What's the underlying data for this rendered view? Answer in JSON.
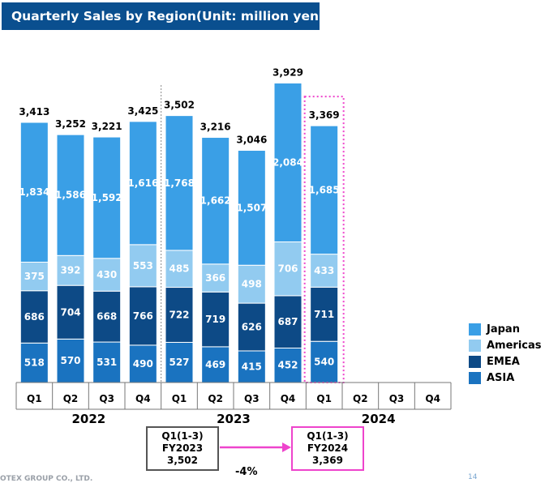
{
  "title": "Quarterly Sales by Region(Unit: million yen)",
  "chart_data": {
    "type": "bar",
    "stacked": true,
    "title": "Quarterly Sales by Region(Unit: million yen)",
    "xlabel": "",
    "ylabel": "",
    "categories": [
      "Q1",
      "Q2",
      "Q3",
      "Q4",
      "Q1",
      "Q2",
      "Q3",
      "Q4",
      "Q1",
      "Q2",
      "Q3",
      "Q4"
    ],
    "years": [
      {
        "label": "2022",
        "quarters": 4
      },
      {
        "label": "2023",
        "quarters": 4
      },
      {
        "label": "2024",
        "quarters": 4
      }
    ],
    "series": [
      {
        "name": "ASIA",
        "color": "#1a73c0",
        "values": [
          518,
          570,
          531,
          490,
          527,
          469,
          415,
          452,
          540,
          null,
          null,
          null
        ]
      },
      {
        "name": "EMEA",
        "color": "#0d4a86",
        "values": [
          686,
          704,
          668,
          766,
          722,
          719,
          626,
          687,
          711,
          null,
          null,
          null
        ]
      },
      {
        "name": "Americas",
        "color": "#92cbf0",
        "values": [
          375,
          392,
          430,
          553,
          485,
          366,
          498,
          706,
          433,
          null,
          null,
          null
        ]
      },
      {
        "name": "Japan",
        "color": "#3a9fe6",
        "values": [
          1834,
          1586,
          1592,
          1616,
          1768,
          1662,
          1507,
          2084,
          1685,
          null,
          null,
          null
        ]
      }
    ],
    "totals": [
      "3,413",
      "3,252",
      "3,221",
      "3,425",
      "3,502",
      "3,216",
      "3,046",
      "3,929",
      "3,369",
      null,
      null,
      null
    ],
    "segment_labels": {
      "ASIA": [
        "518",
        "570",
        "531",
        "490",
        "527",
        "469",
        "415",
        "452",
        "540"
      ],
      "EMEA": [
        "686",
        "704",
        "668",
        "766",
        "722",
        "719",
        "626",
        "687",
        "711"
      ],
      "Americas": [
        "375",
        "392",
        "430",
        "553",
        "485",
        "366",
        "498",
        "706",
        "433"
      ],
      "Japan": [
        "1,834",
        "1,586",
        "1,592",
        "1,616",
        "1,768",
        "1,662",
        "1,507",
        "2,084",
        "1,685"
      ]
    },
    "ylim": [
      0,
      4400
    ],
    "grid": false,
    "legend_position": "right",
    "legend": [
      {
        "name": "Japan",
        "color": "#3a9fe6"
      },
      {
        "name": "Americas",
        "color": "#92cbf0"
      },
      {
        "name": "EMEA",
        "color": "#0d4a86"
      },
      {
        "name": "ASIA",
        "color": "#1a73c0"
      }
    ],
    "highlight_index": 8,
    "highlight_color": "#ee44cc"
  },
  "comparison": {
    "prev": {
      "line1": "Q1(1-3)",
      "line2": "FY2023",
      "value": "3,502"
    },
    "curr": {
      "line1": "Q1(1-3)",
      "line2": "FY2024",
      "value": "3,369"
    },
    "change": "-4%",
    "arrow_color": "#ee44cc"
  },
  "footer": {
    "company": "OTEX GROUP CO., LTD.",
    "page": "14"
  }
}
